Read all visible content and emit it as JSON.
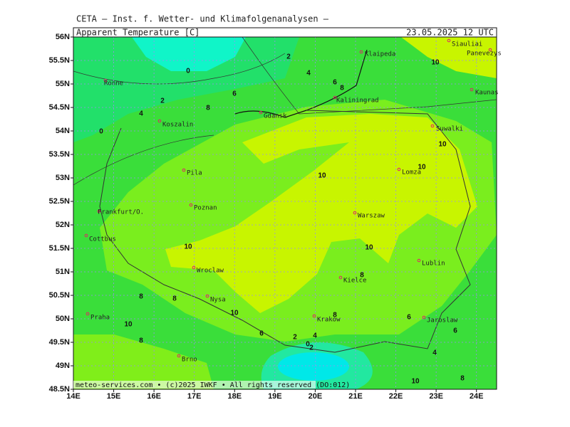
{
  "header": {
    "institute": "CETA – Inst. f. Wetter- und Klimafolgenanalysen –",
    "title": "Apparent_Temperature_[C]",
    "time": "23.05.2025 12 UTC"
  },
  "lat_ticks": [
    {
      "value": 56,
      "label": "56N"
    },
    {
      "value": 55.5,
      "label": "55.5N"
    },
    {
      "value": 55,
      "label": "55N"
    },
    {
      "value": 54.5,
      "label": "54.5N"
    },
    {
      "value": 54,
      "label": "54N"
    },
    {
      "value": 53.5,
      "label": "53.5N"
    },
    {
      "value": 53,
      "label": "53N"
    },
    {
      "value": 52.5,
      "label": "52.5N"
    },
    {
      "value": 52,
      "label": "52N"
    },
    {
      "value": 51.5,
      "label": "51.5N"
    },
    {
      "value": 51,
      "label": "51N"
    },
    {
      "value": 50.5,
      "label": "50.5N"
    },
    {
      "value": 50,
      "label": "50N"
    },
    {
      "value": 49.5,
      "label": "49.5N"
    },
    {
      "value": 49,
      "label": "49N"
    },
    {
      "value": 48.5,
      "label": "48.5N"
    }
  ],
  "lon_ticks": [
    {
      "value": 14,
      "label": "14E"
    },
    {
      "value": 15,
      "label": "15E"
    },
    {
      "value": 16,
      "label": "16E"
    },
    {
      "value": 17,
      "label": "17E"
    },
    {
      "value": 18,
      "label": "18E"
    },
    {
      "value": 19,
      "label": "19E"
    },
    {
      "value": 20,
      "label": "20E"
    },
    {
      "value": 21,
      "label": "21E"
    },
    {
      "value": 22,
      "label": "22E"
    },
    {
      "value": 23,
      "label": "23E"
    },
    {
      "value": 24,
      "label": "24E"
    }
  ],
  "cities": [
    "Siauliai",
    "Panevezys",
    "Klaipeda",
    "Ronne",
    "Kaunas",
    "Kaliningrad",
    "Gdansk",
    "Koszalin",
    "Suwalki",
    "Lomza",
    "Pila",
    "Poznan",
    "Frankfurt/O.",
    "Warszaw",
    "Cottbus",
    "Lublin",
    "Wroclaw",
    "Kielce",
    "Nysa",
    "Praha",
    "Krakow",
    "Jaroslaw",
    "Brno"
  ],
  "contour_labels": [
    0,
    2,
    4,
    6,
    8,
    6,
    2,
    4,
    8,
    0,
    10,
    10,
    10,
    10,
    10,
    10,
    8,
    8,
    8,
    10,
    10,
    8,
    6,
    8,
    6,
    6,
    2,
    4,
    0,
    2,
    4,
    10,
    8
  ],
  "footer": "meteo-services.com • (c)2025 IWKF • All rights reserved (DO:012)"
}
